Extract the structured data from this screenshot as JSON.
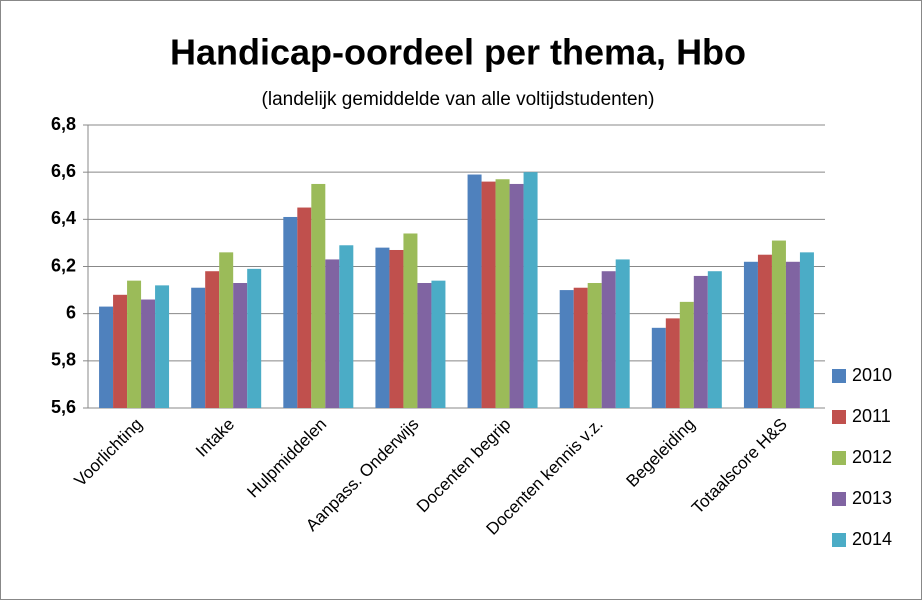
{
  "chart_data": {
    "type": "bar",
    "title": "Handicap-oordeel per thema, Hbo",
    "subtitle": "(landelijk gemiddelde van alle voltijdstudenten)",
    "categories": [
      "Voorlichting",
      "Intake",
      "Hulpmiddelen",
      "Aanpass. Onderwijs",
      "Docenten begrip",
      "Docenten kennis v.z.",
      "Begeleiding",
      "Totaalscore H&S"
    ],
    "series": [
      {
        "name": "2010",
        "color": "#4f81bd",
        "values": [
          6.03,
          6.11,
          6.41,
          6.28,
          6.59,
          6.1,
          5.94,
          6.22
        ]
      },
      {
        "name": "2011",
        "color": "#c0504d",
        "values": [
          6.08,
          6.18,
          6.45,
          6.27,
          6.56,
          6.11,
          5.98,
          6.25
        ]
      },
      {
        "name": "2012",
        "color": "#9bbb59",
        "values": [
          6.14,
          6.26,
          6.55,
          6.34,
          6.57,
          6.13,
          6.05,
          6.31
        ]
      },
      {
        "name": "2013",
        "color": "#8064a2",
        "values": [
          6.06,
          6.13,
          6.23,
          6.13,
          6.55,
          6.18,
          6.16,
          6.22
        ]
      },
      {
        "name": "2014",
        "color": "#4bacc6",
        "values": [
          6.12,
          6.19,
          6.29,
          6.14,
          6.6,
          6.23,
          6.18,
          6.26
        ]
      }
    ],
    "ylim": [
      5.6,
      6.8
    ],
    "yticks": [
      {
        "value": 5.6,
        "label": "5,6"
      },
      {
        "value": 5.8,
        "label": "5,8"
      },
      6,
      {
        "value": 6.2,
        "label": "6,2"
      },
      {
        "value": 6.4,
        "label": "6,4"
      },
      {
        "value": 6.6,
        "label": "6,6"
      },
      {
        "value": 6.8,
        "label": "6,8"
      }
    ],
    "grid": true,
    "legend": "right"
  }
}
